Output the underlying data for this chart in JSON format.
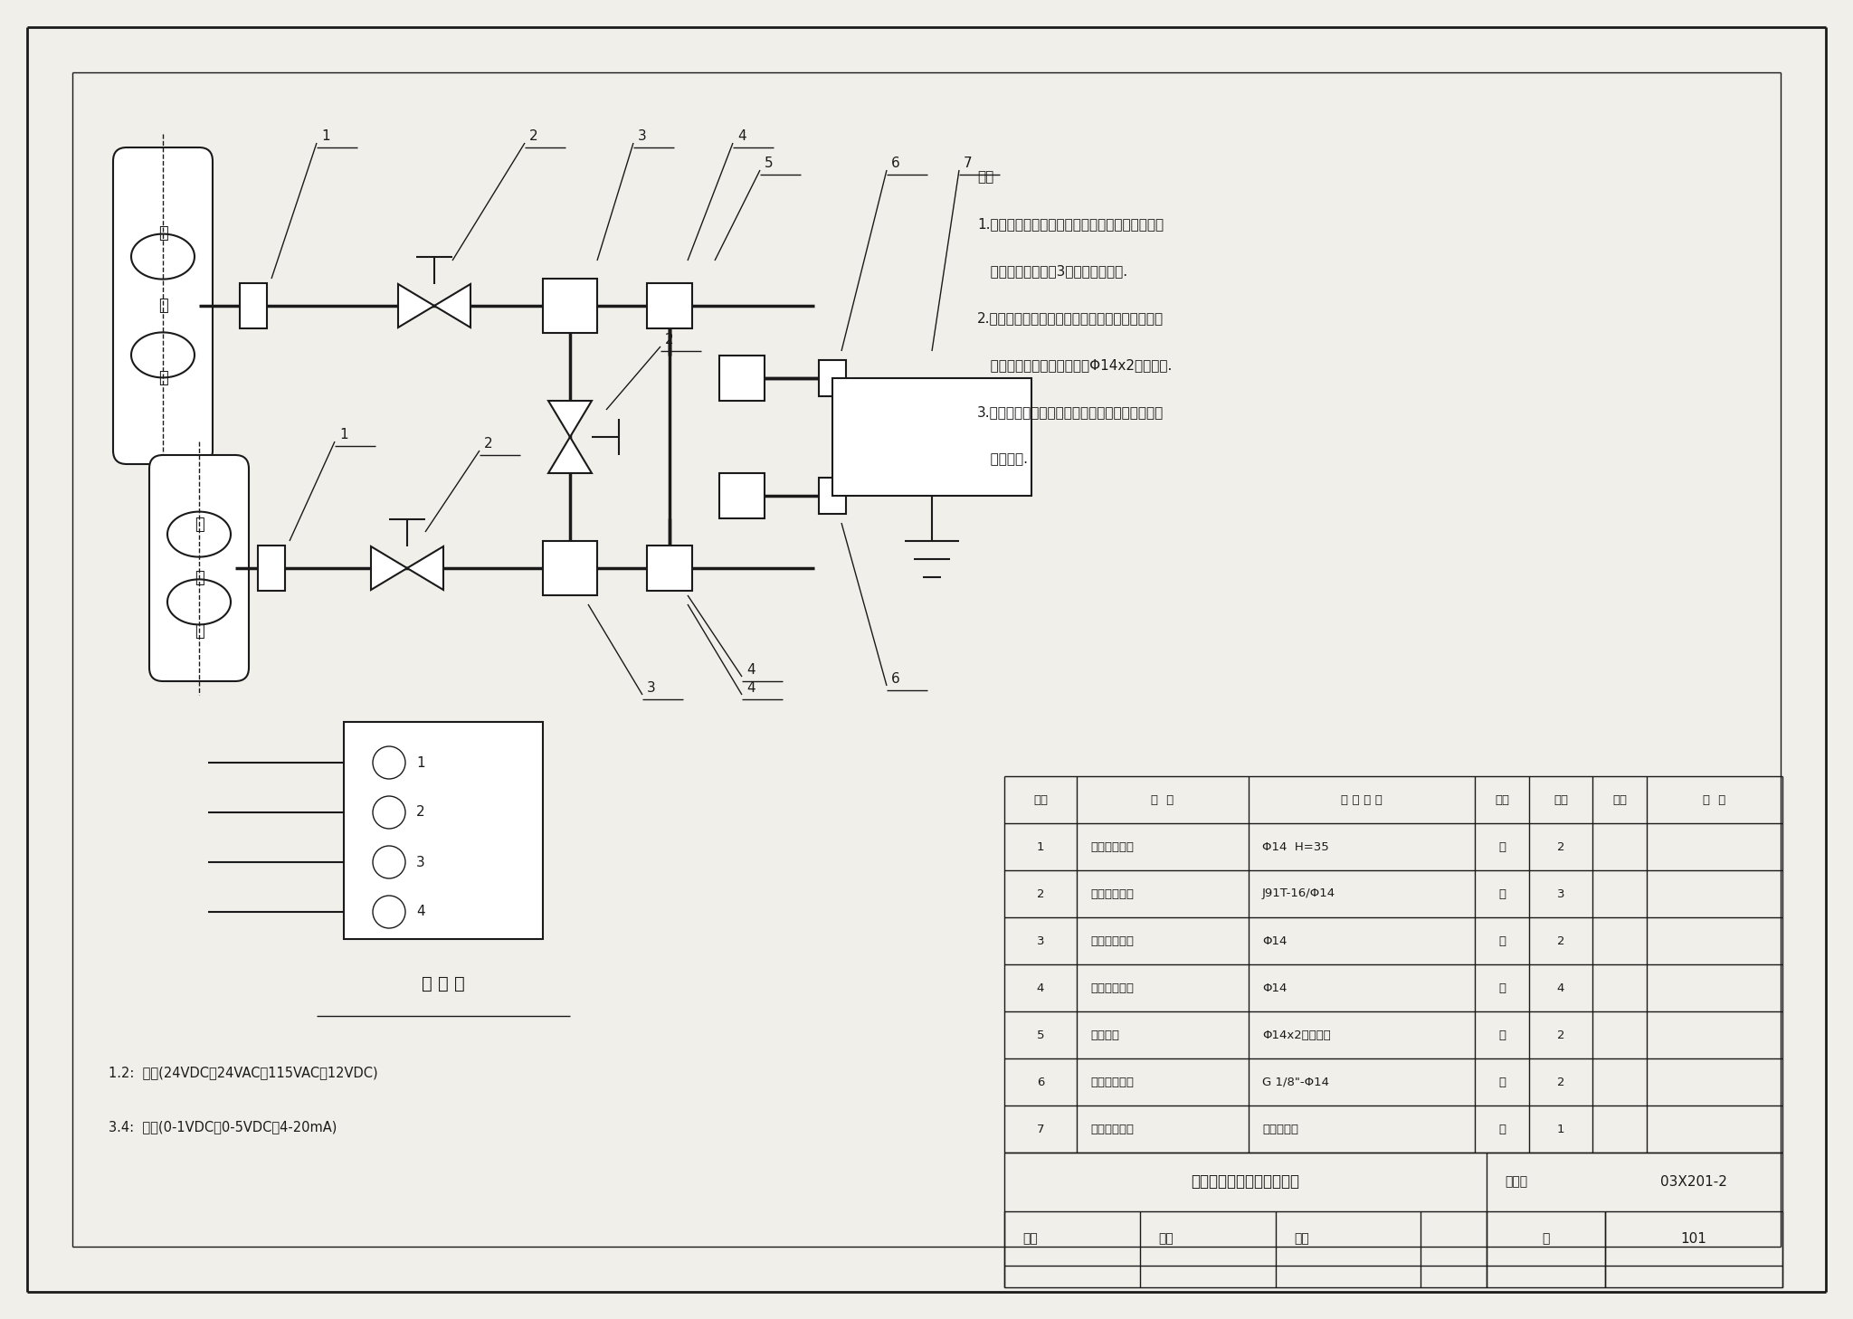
{
  "bg_color": "#f0efea",
  "line_color": "#1a1a1a",
  "title": "水静压差传感器安装（一）",
  "drawing_number": "03X201-2",
  "page": "101",
  "notes": [
    "注：",
    "1.焊接终端接头安装在工艺管道直线段上，离阀门",
    "   和弯头距离不小于3倍工艺管道直径.",
    "2.除与工艺管道焊接和与传感器螺纹连接外，全部",
    "   采用卡套连接，连接钢管用Φ14x2无缝钢管.",
    "3.连接钢管必须用支架固定，传感器安装在无振动",
    "   的支架上."
  ],
  "legend_label1": "1.2:  电源(24VDC，24VAC，115VAC，12VDC)",
  "legend_label2": "3.4:  信号(0-1VDC，0-5VDC，4-20mA)",
  "wiring_label": "接 线 图",
  "table_headers": [
    "序号",
    "名  称",
    "型 号 规 格",
    "单位",
    "数量",
    "页次",
    "备  注"
  ],
  "table_rows": [
    [
      "1",
      "焊接终端接头",
      "Φ14  H=35",
      "个",
      "2",
      "",
      ""
    ],
    [
      "2",
      "卡套式截止阀",
      "J91T-16/Φ14",
      "个",
      "3",
      "",
      ""
    ],
    [
      "3",
      "三通中间接头",
      "Φ14",
      "个",
      "2",
      "",
      ""
    ],
    [
      "4",
      "弯通中间接头",
      "Φ14",
      "个",
      "4",
      "",
      ""
    ],
    [
      "5",
      "连接钢管",
      "Φ14x2无缝钢管",
      "根",
      "2",
      "",
      ""
    ],
    [
      "6",
      "直通终端接头",
      "G 1/8\"-Φ14",
      "个",
      "2",
      "",
      ""
    ],
    [
      "7",
      "静压差传感器",
      "见工程设计",
      "套",
      "1",
      "",
      ""
    ]
  ]
}
